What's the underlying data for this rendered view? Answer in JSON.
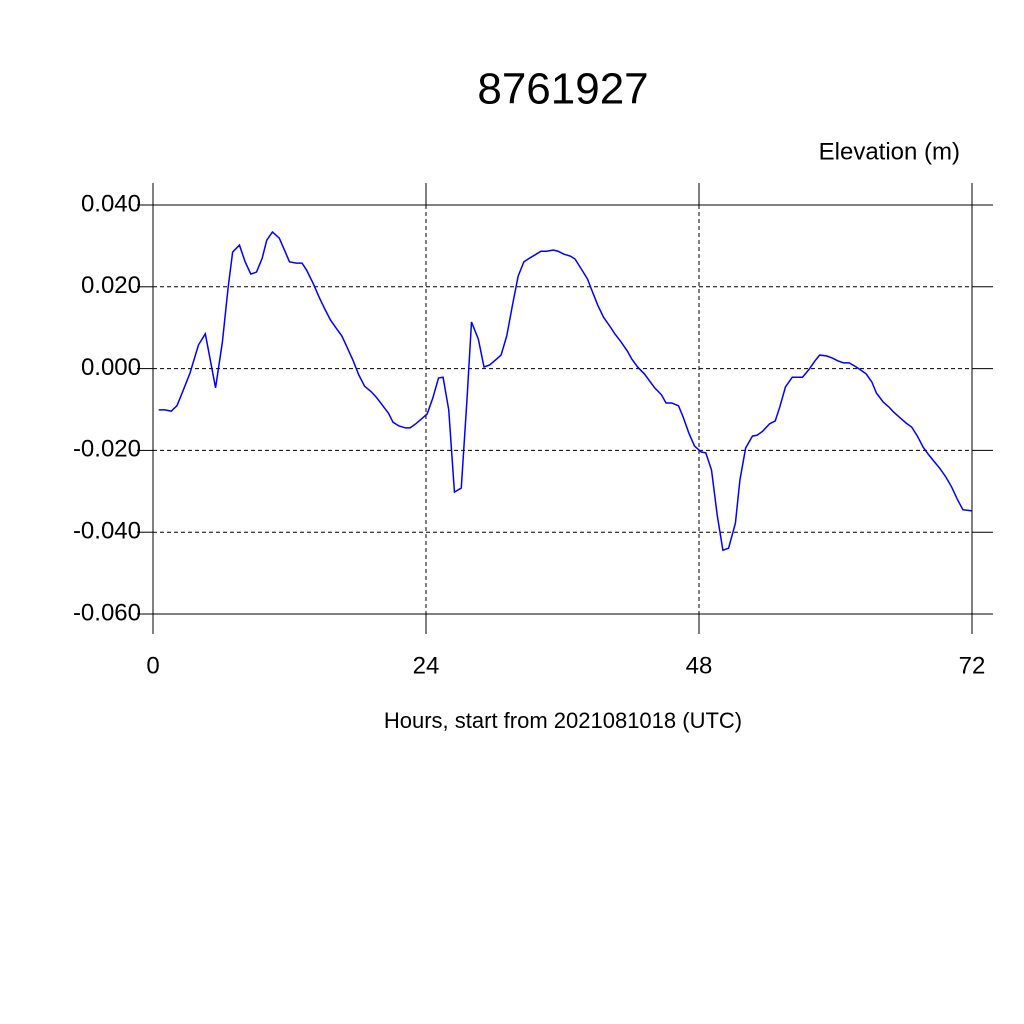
{
  "chart_data": {
    "type": "line",
    "title": "8761927",
    "ylabel": "Elevation (m)",
    "xlabel": "Hours, start from 2021081018 (UTC)",
    "xlim": [
      0,
      72
    ],
    "xticks": [
      0,
      24,
      48,
      72
    ],
    "ylim": [
      -0.06,
      0.04
    ],
    "yticks": [
      {
        "value": -0.06,
        "label": "-0.060"
      },
      {
        "value": -0.04,
        "label": "-0.040"
      },
      {
        "value": -0.02,
        "label": "-0.020"
      },
      {
        "value": 0,
        "label": "0.000"
      },
      {
        "value": 0.02,
        "label": "0.020"
      },
      {
        "value": 0.04,
        "label": "0.040"
      }
    ],
    "grid": true,
    "series": [
      {
        "color": "#0000ff",
        "x": [
          0.5,
          1.05,
          1.6,
          2.1,
          2.6,
          3.25,
          4.0,
          4.6,
          5.5,
          6.1,
          6.6,
          7.0,
          7.6,
          8.1,
          8.6,
          9.1,
          9.6,
          10.0,
          10.5,
          11.1,
          11.6,
          12.0,
          12.6,
          13.1,
          13.5,
          14.1,
          14.6,
          15.1,
          15.6,
          16.1,
          16.6,
          17.1,
          17.6,
          18.1,
          18.6,
          19.2,
          19.6,
          20.1,
          20.7,
          21.1,
          21.6,
          22.2,
          22.6,
          23.1,
          23.6,
          24.1,
          24.6,
          25.1,
          25.5,
          26.0,
          26.5,
          27.1,
          27.6,
          28.0,
          28.6,
          29.1,
          29.6,
          30.1,
          30.6,
          31.1,
          31.6,
          32.1,
          32.6,
          33.1,
          33.7,
          34.1,
          34.6,
          35.2,
          35.6,
          36.1,
          36.7,
          37.1,
          37.6,
          38.2,
          38.6,
          39.1,
          39.6,
          40.2,
          40.6,
          41.1,
          41.7,
          42.1,
          42.6,
          43.2,
          43.6,
          44.1,
          44.7,
          45.1,
          45.6,
          46.2,
          46.6,
          47.1,
          47.6,
          48.2,
          48.6,
          49.1,
          49.6,
          50.1,
          50.6,
          51.2,
          51.6,
          52.1,
          52.7,
          53.1,
          53.6,
          54.2,
          54.7,
          55.1,
          55.6,
          56.2,
          56.6,
          57.1,
          57.7,
          58.2,
          58.6,
          59.2,
          59.7,
          60.2,
          60.7,
          61.2,
          61.7,
          62.2,
          62.7,
          63.2,
          63.6,
          64.2,
          64.7,
          65.1,
          65.7,
          66.2,
          66.7,
          67.2,
          67.7,
          68.2,
          68.7,
          69.2,
          69.7,
          70.2,
          70.7,
          71.2,
          72.0
        ],
        "values": [
          -0.0101,
          -0.0101,
          -0.0104,
          -0.0091,
          -0.0057,
          -0.0011,
          0.0058,
          0.0085,
          -0.0047,
          0.0065,
          0.0197,
          0.0285,
          0.0302,
          0.0261,
          0.0231,
          0.0236,
          0.027,
          0.0314,
          0.0334,
          0.0319,
          0.0287,
          0.0261,
          0.0258,
          0.0258,
          0.0241,
          0.0207,
          0.0175,
          0.0146,
          0.0119,
          0.0099,
          0.008,
          0.005,
          0.0019,
          -0.0016,
          -0.0043,
          -0.0057,
          -0.0069,
          -0.0087,
          -0.0109,
          -0.0131,
          -0.014,
          -0.0145,
          -0.0145,
          -0.0135,
          -0.0123,
          -0.0111,
          -0.0072,
          -0.0023,
          -0.0021,
          -0.0101,
          -0.0302,
          -0.0292,
          -0.0077,
          0.0114,
          0.0072,
          0.0004,
          0.0009,
          0.0021,
          0.0033,
          0.008,
          0.0155,
          0.0226,
          0.0261,
          0.027,
          0.028,
          0.0287,
          0.0287,
          0.029,
          0.0287,
          0.028,
          0.0275,
          0.0268,
          0.0246,
          0.0219,
          0.019,
          0.0155,
          0.0126,
          0.0102,
          0.0085,
          0.0067,
          0.0043,
          0.0023,
          0.0004,
          -0.0013,
          -0.0028,
          -0.0047,
          -0.0064,
          -0.0084,
          -0.0084,
          -0.0091,
          -0.0118,
          -0.0157,
          -0.0189,
          -0.0204,
          -0.0206,
          -0.0248,
          -0.0358,
          -0.0444,
          -0.0439,
          -0.0378,
          -0.0272,
          -0.0194,
          -0.0165,
          -0.0163,
          -0.0153,
          -0.0135,
          -0.0128,
          -0.0094,
          -0.0045,
          -0.0021,
          -0.0021,
          -0.0021,
          -0.0001,
          0.0019,
          0.0033,
          0.0031,
          0.0026,
          0.0019,
          0.0014,
          0.0014,
          0.0006,
          -0.0003,
          -0.0013,
          -0.0033,
          -0.006,
          -0.0082,
          -0.0094,
          -0.0106,
          -0.0121,
          -0.0133,
          -0.0143,
          -0.0165,
          -0.0192,
          -0.0211,
          -0.0228,
          -0.0245,
          -0.0265,
          -0.0289,
          -0.0319,
          -0.0345,
          -0.0348
        ]
      }
    ]
  }
}
